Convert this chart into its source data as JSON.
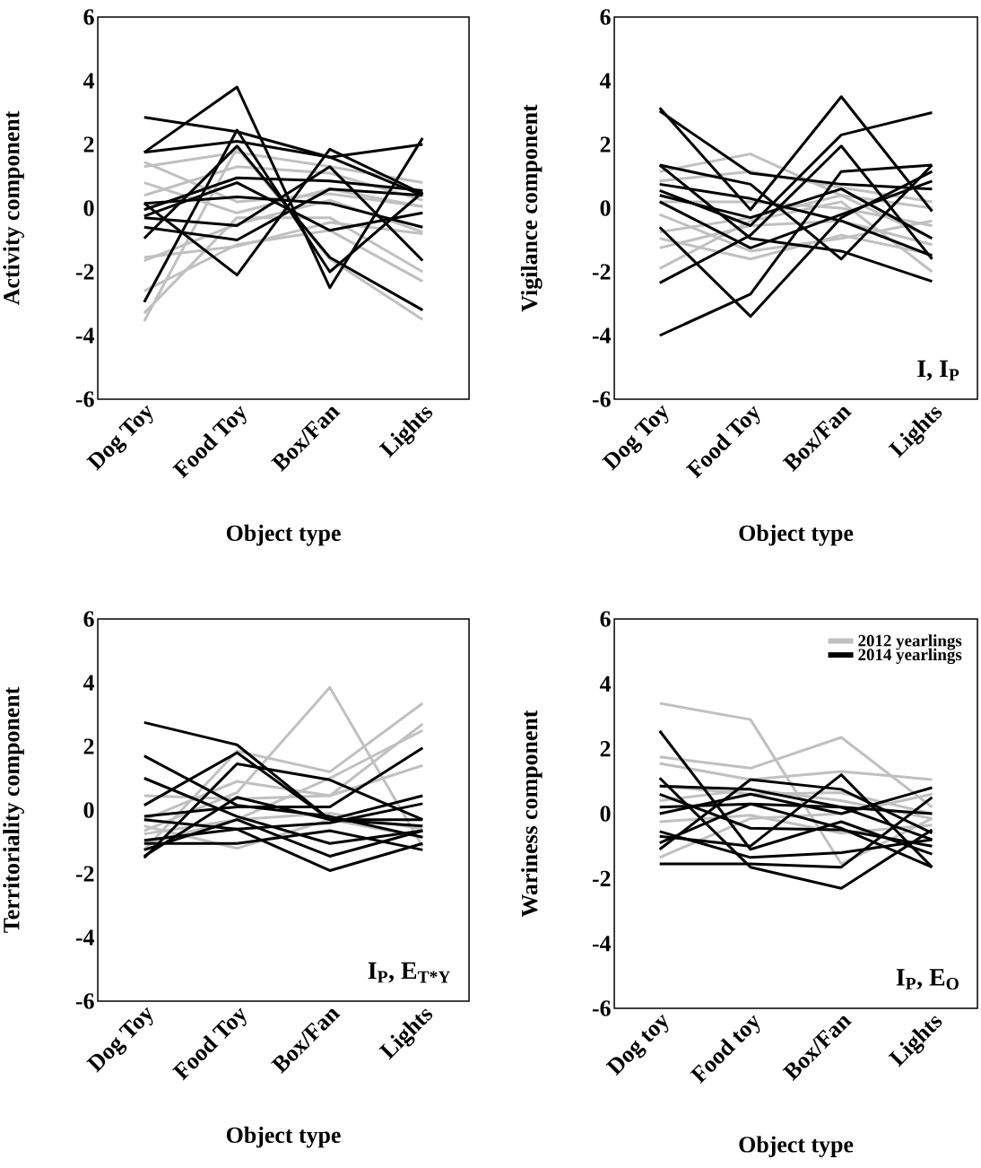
{
  "chart_data": [
    {
      "type": "line",
      "ylabel": "Activity component",
      "xlabel": "Object type",
      "categories": [
        "Dog Toy",
        "Food Toy",
        "Box/Fan",
        "Lights"
      ],
      "ylim": [
        -6,
        6
      ],
      "yticks": [
        -6,
        -4,
        -2,
        0,
        2,
        4,
        6
      ],
      "series": [
        {
          "color": "#c0c0c0",
          "values": [
            -3.55,
            1.9,
            -1.6,
            -3.5
          ]
        },
        {
          "color": "#c0c0c0",
          "values": [
            -3.3,
            -0.3,
            -0.3,
            -2.0
          ]
        },
        {
          "color": "#c0c0c0",
          "values": [
            -2.6,
            -1.15,
            -0.7,
            -2.3
          ]
        },
        {
          "color": "#c0c0c0",
          "values": [
            -1.65,
            -0.5,
            0.25,
            -0.75
          ]
        },
        {
          "color": "#c0c0c0",
          "values": [
            1.45,
            0.2,
            0.45,
            0.05
          ]
        },
        {
          "color": "#c0c0c0",
          "values": [
            1.3,
            1.75,
            1.3,
            0.8
          ]
        },
        {
          "color": "#c0c0c0",
          "values": [
            0.8,
            -0.15,
            0.6,
            0.05
          ]
        },
        {
          "color": "#c0c0c0",
          "values": [
            0.4,
            1.3,
            1.1,
            0.25
          ]
        },
        {
          "color": "#c0c0c0",
          "values": [
            -1.55,
            -1.2,
            -0.45,
            -0.8
          ]
        },
        {
          "color": "#000000",
          "values": [
            1.75,
            3.8,
            -2.5,
            2.2
          ]
        },
        {
          "color": "#000000",
          "values": [
            2.85,
            2.4,
            1.6,
            0.4
          ]
        },
        {
          "color": "#000000",
          "values": [
            1.75,
            2.1,
            1.6,
            2.0
          ]
        },
        {
          "color": "#000000",
          "values": [
            -2.95,
            2.45,
            -2.0,
            0.5
          ]
        },
        {
          "color": "#000000",
          "values": [
            -0.95,
            1.95,
            -1.55,
            -3.2
          ]
        },
        {
          "color": "#000000",
          "values": [
            0.15,
            -2.1,
            1.85,
            0.45
          ]
        },
        {
          "color": "#000000",
          "values": [
            -0.25,
            0.8,
            -0.7,
            -0.15
          ]
        },
        {
          "color": "#000000",
          "values": [
            -0.3,
            -0.55,
            1.3,
            -1.65
          ]
        },
        {
          "color": "#000000",
          "values": [
            -0.05,
            0.95,
            0.85,
            0.55
          ]
        },
        {
          "color": "#000000",
          "values": [
            -0.6,
            -1.0,
            0.6,
            0.4
          ]
        },
        {
          "color": "#000000",
          "values": [
            0.15,
            0.35,
            0.15,
            -0.6
          ]
        }
      ]
    },
    {
      "type": "line",
      "ylabel": "Vigilance component",
      "xlabel": "Object type",
      "annotations": [
        "I, I$_{P}$"
      ],
      "categories": [
        "Dog Toy",
        "Food Toy",
        "Box/Fan",
        "Lights"
      ],
      "ylim": [
        -6,
        6
      ],
      "yticks": [
        -6,
        -4,
        -2,
        0,
        2,
        4,
        6
      ],
      "series": [
        {
          "color": "#c0c0c0",
          "values": [
            -1.9,
            -0.4,
            0.2,
            -2.0
          ]
        },
        {
          "color": "#c0c0c0",
          "values": [
            -0.95,
            -1.6,
            -0.85,
            -1.45
          ]
        },
        {
          "color": "#c0c0c0",
          "values": [
            1.15,
            1.7,
            0.4,
            -0.95
          ]
        },
        {
          "color": "#c0c0c0",
          "values": [
            -0.2,
            -1.35,
            -0.95,
            -0.4
          ]
        },
        {
          "color": "#c0c0c0",
          "values": [
            0.85,
            1.15,
            0.65,
            0.2
          ]
        },
        {
          "color": "#c0c0c0",
          "values": [
            -1.25,
            -0.55,
            -0.4,
            -1.15
          ]
        },
        {
          "color": "#c0c0c0",
          "values": [
            0.2,
            0.2,
            0.0,
            -0.55
          ]
        },
        {
          "color": "#c0c0c0",
          "values": [
            -0.75,
            -0.3,
            0.4,
            0.0
          ]
        },
        {
          "color": "#000000",
          "values": [
            3.15,
            -0.05,
            3.5,
            -0.1
          ]
        },
        {
          "color": "#000000",
          "values": [
            3.05,
            1.1,
            0.75,
            0.6
          ]
        },
        {
          "color": "#000000",
          "values": [
            -4.0,
            -2.7,
            1.15,
            1.35
          ]
        },
        {
          "color": "#000000",
          "values": [
            -0.6,
            -3.4,
            -0.3,
            1.15
          ]
        },
        {
          "color": "#000000",
          "values": [
            -2.35,
            -0.85,
            1.95,
            -1.6
          ]
        },
        {
          "color": "#000000",
          "values": [
            1.35,
            0.75,
            -1.6,
            1.35
          ]
        },
        {
          "color": "#000000",
          "values": [
            0.55,
            -0.55,
            2.3,
            3.0
          ]
        },
        {
          "color": "#000000",
          "values": [
            1.35,
            -0.95,
            -1.35,
            -2.3
          ]
        },
        {
          "color": "#000000",
          "values": [
            0.4,
            -0.3,
            0.6,
            -0.95
          ]
        },
        {
          "color": "#000000",
          "values": [
            0.2,
            -1.25,
            -0.2,
            0.85
          ]
        },
        {
          "color": "#000000",
          "values": [
            0.75,
            0.3,
            -0.4,
            -1.5
          ]
        }
      ]
    },
    {
      "type": "line",
      "ylabel": "Territoriality component",
      "xlabel": "Object type",
      "annotations": [
        "I$_{P}$, E$_{T*Y}$"
      ],
      "categories": [
        "Dog Toy",
        "Food Toy",
        "Box/Fan",
        "Lights"
      ],
      "ylim": [
        -6,
        6
      ],
      "yticks": [
        -6,
        -4,
        -2,
        0,
        2,
        4,
        6
      ],
      "series": [
        {
          "color": "#c0c0c0",
          "values": [
            -0.65,
            0.55,
            3.85,
            -1.15
          ]
        },
        {
          "color": "#c0c0c0",
          "values": [
            -1.25,
            1.85,
            1.2,
            3.35
          ]
        },
        {
          "color": "#c0c0c0",
          "values": [
            -0.3,
            0.9,
            0.45,
            2.7
          ]
        },
        {
          "color": "#c0c0c0",
          "values": [
            -0.75,
            -0.3,
            1.0,
            2.5
          ]
        },
        {
          "color": "#c0c0c0",
          "values": [
            0.45,
            0.35,
            0.45,
            1.4
          ]
        },
        {
          "color": "#c0c0c0",
          "values": [
            -0.5,
            -1.2,
            -0.3,
            -0.85
          ]
        },
        {
          "color": "#c0c0c0",
          "values": [
            -1.05,
            -0.3,
            -0.1,
            -0.6
          ]
        },
        {
          "color": "#000000",
          "values": [
            2.75,
            2.05,
            -0.3,
            -0.3
          ]
        },
        {
          "color": "#000000",
          "values": [
            1.7,
            0.15,
            -0.2,
            -0.85
          ]
        },
        {
          "color": "#000000",
          "values": [
            1.0,
            -0.2,
            -1.05,
            -0.65
          ]
        },
        {
          "color": "#000000",
          "values": [
            0.15,
            1.8,
            -0.3,
            -0.5
          ]
        },
        {
          "color": "#000000",
          "values": [
            -1.5,
            1.45,
            0.95,
            -0.3
          ]
        },
        {
          "color": "#000000",
          "values": [
            -0.3,
            -0.6,
            -1.9,
            -1.05
          ]
        },
        {
          "color": "#000000",
          "values": [
            -1.25,
            -0.3,
            -1.45,
            -0.65
          ]
        },
        {
          "color": "#000000",
          "values": [
            -1.45,
            0.4,
            -0.3,
            0.45
          ]
        },
        {
          "color": "#000000",
          "values": [
            -0.2,
            0.1,
            0.1,
            1.95
          ]
        },
        {
          "color": "#000000",
          "values": [
            -1.05,
            -1.05,
            -0.65,
            -1.25
          ]
        },
        {
          "color": "#000000",
          "values": [
            -0.95,
            -0.6,
            -0.4,
            0.2
          ]
        }
      ]
    },
    {
      "type": "line",
      "ylabel": "Wariness component",
      "xlabel": "Object type",
      "annotations": [
        "I$_{P}$, E$_{O}$"
      ],
      "categories": [
        "Dog toy",
        "Food toy",
        "Box/Fan",
        "Lights"
      ],
      "ylim": [
        -6,
        6
      ],
      "yticks": [
        -6,
        -4,
        -2,
        0,
        2,
        4,
        6
      ],
      "legend": "top right",
      "series": [
        {
          "name": "2012 yearlings",
          "color": "#c0c0c0",
          "values": [
            3.4,
            2.9,
            -1.55,
            -0.15
          ]
        },
        {
          "color": "#c0c0c0",
          "values": [
            1.75,
            1.4,
            2.35,
            0.2
          ]
        },
        {
          "color": "#c0c0c0",
          "values": [
            1.55,
            1.05,
            1.3,
            1.05
          ]
        },
        {
          "color": "#c0c0c0",
          "values": [
            -1.35,
            -0.15,
            0.0,
            0.6
          ]
        },
        {
          "color": "#c0c0c0",
          "values": [
            0.85,
            0.6,
            0.65,
            0.0
          ]
        },
        {
          "color": "#c0c0c0",
          "values": [
            -0.25,
            -0.05,
            -0.6,
            -0.35
          ]
        },
        {
          "color": "#c0c0c0",
          "values": [
            0.4,
            0.75,
            0.4,
            -0.15
          ]
        },
        {
          "name": "2014 yearlings",
          "color": "#000000",
          "values": [
            2.55,
            -1.1,
            -0.25,
            -1.25
          ]
        },
        {
          "color": "#000000",
          "values": [
            -1.55,
            -1.55,
            -1.65,
            0.5
          ]
        },
        {
          "color": "#000000",
          "values": [
            1.1,
            -1.65,
            -2.3,
            -0.5
          ]
        },
        {
          "color": "#000000",
          "values": [
            -1.1,
            1.05,
            0.75,
            -0.6
          ]
        },
        {
          "color": "#000000",
          "values": [
            -0.7,
            -1.0,
            1.2,
            -1.65
          ]
        },
        {
          "color": "#000000",
          "values": [
            0.2,
            0.3,
            0.2,
            -0.8
          ]
        },
        {
          "color": "#000000",
          "values": [
            0.6,
            -0.45,
            -0.5,
            -1.0
          ]
        },
        {
          "color": "#000000",
          "values": [
            0.0,
            0.6,
            0.0,
            0.8
          ]
        },
        {
          "color": "#000000",
          "values": [
            0.85,
            0.75,
            0.2,
            0.0
          ]
        },
        {
          "color": "#000000",
          "values": [
            -0.9,
            0.3,
            -0.45,
            -1.65
          ]
        },
        {
          "color": "#000000",
          "values": [
            -0.55,
            -1.35,
            -1.2,
            -0.8
          ]
        }
      ]
    }
  ]
}
